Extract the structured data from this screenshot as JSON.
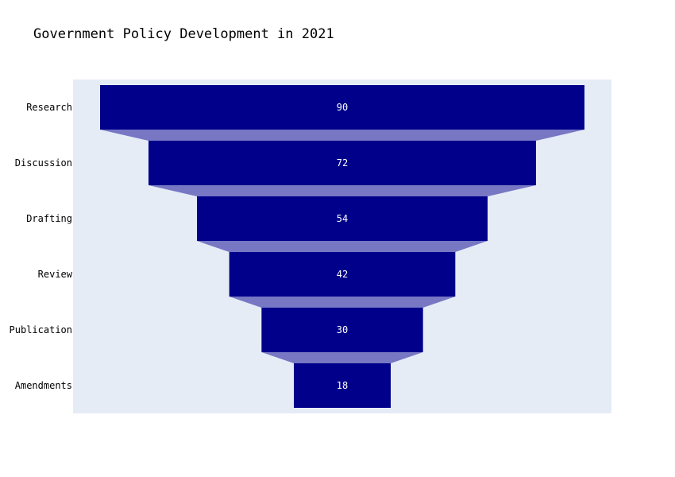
{
  "chart_data": {
    "type": "funnel",
    "title": "Government Policy Development in 2021",
    "categories": [
      "Research",
      "Discussion",
      "Drafting",
      "Review",
      "Publication",
      "Amendments"
    ],
    "values": [
      90,
      72,
      54,
      42,
      30,
      18
    ],
    "colors": {
      "bar": "#00008b",
      "connector": "#7777c4",
      "plot_background": "#e5ecf6",
      "value_text": "#ffffff"
    }
  }
}
